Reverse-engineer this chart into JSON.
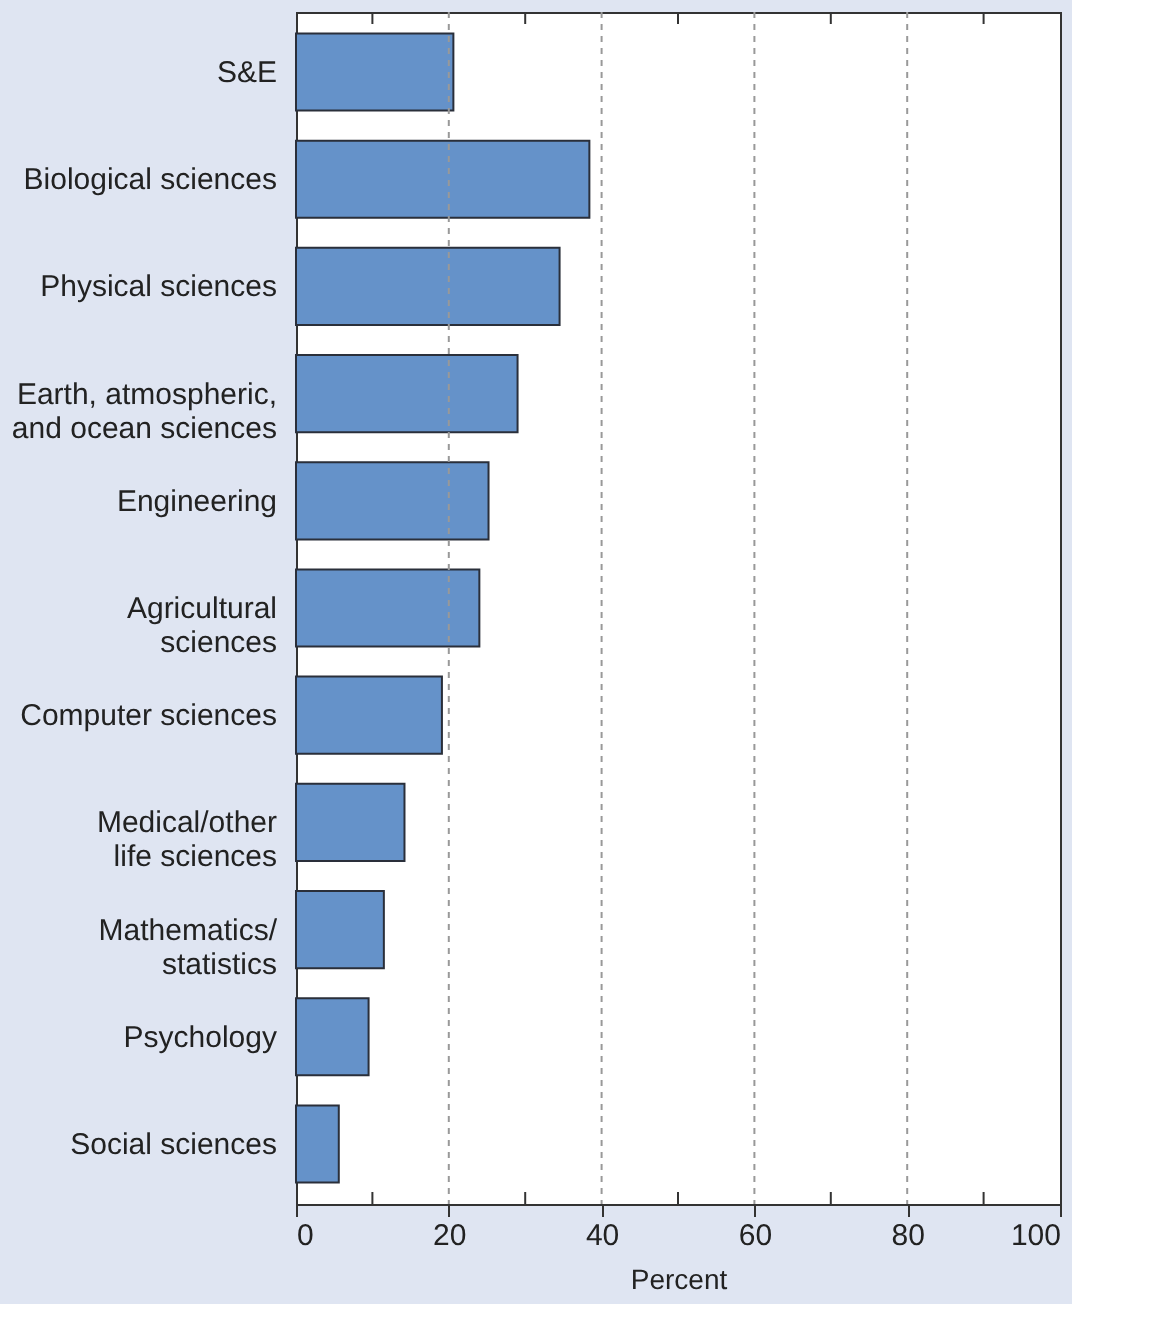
{
  "chart_data": {
    "type": "bar",
    "orientation": "horizontal",
    "xlabel": "Percent",
    "categories": [
      "S&E",
      "Biological sciences",
      "Physical sciences",
      "Earth, atmospheric,\nand ocean sciences",
      "Engineering",
      "Agricultural\nsciences",
      "Computer sciences",
      "Medical/other\nlife sciences",
      "Mathematics/\nstatistics",
      "Psychology",
      "Social sciences"
    ],
    "values": [
      20.6,
      38.4,
      34.5,
      29.0,
      25.2,
      24.0,
      19.1,
      14.2,
      11.5,
      9.5,
      5.6
    ],
    "color": "#6592c9",
    "xlim": [
      0,
      100
    ],
    "xticks": [
      0,
      {
        "value": 10,
        "label": null
      },
      20,
      {
        "value": 30,
        "label": null
      },
      40,
      {
        "value": 50,
        "label": null
      },
      60,
      {
        "value": 70,
        "label": null
      },
      80,
      {
        "value": 90,
        "label": null
      },
      100
    ],
    "grid": "x"
  }
}
